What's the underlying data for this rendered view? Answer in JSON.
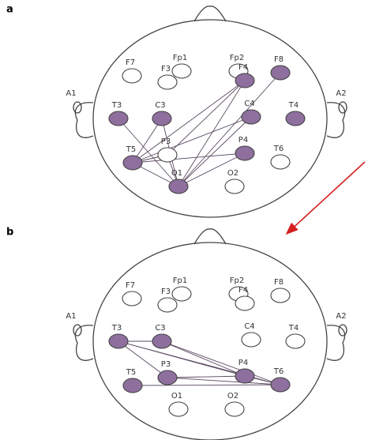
{
  "panels": [
    {
      "label": "a",
      "electrodes": [
        "Fp1",
        "Fp2",
        "F7",
        "F3",
        "F4",
        "F8",
        "A1",
        "T3",
        "C3",
        "C4",
        "T4",
        "A2",
        "T5",
        "P3",
        "P4",
        "T6",
        "O1",
        "O2"
      ]
    },
    {
      "label": "b",
      "electrodes": [
        "Fp1",
        "Fp2",
        "F7",
        "F3",
        "F4",
        "F8",
        "A1",
        "T3",
        "C3",
        "C4",
        "T4",
        "A2",
        "T5",
        "P3",
        "P4",
        "T6",
        "O1",
        "O2"
      ]
    }
  ]
}
